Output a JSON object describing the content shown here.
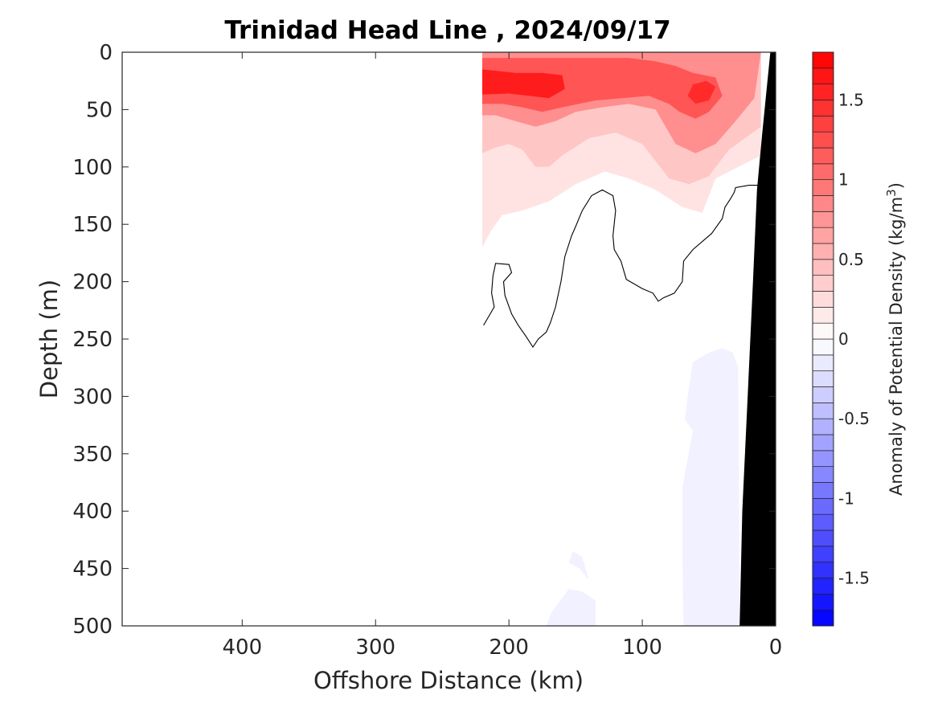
{
  "chart_data": {
    "type": "heatmap",
    "title": "Trinidad Head Line , 2024/09/17",
    "xlabel": "Offshore Distance (km)",
    "ylabel": "Depth (m)",
    "xlim": [
      490,
      0
    ],
    "ylim": [
      500,
      0
    ],
    "x_ticks": [
      400,
      300,
      200,
      100,
      0
    ],
    "y_ticks": [
      0,
      50,
      100,
      150,
      200,
      250,
      300,
      350,
      400,
      450,
      500
    ],
    "colorbar": {
      "label_prefix": "Anomaly of Potential Density (kg/m",
      "label_sup": "3",
      "label_suffix": ")",
      "range": [
        -1.8,
        1.8
      ],
      "ticks": [
        -1.5,
        -1,
        -0.5,
        0,
        0.5,
        1,
        1.5
      ],
      "tick_labels": [
        "-1.5",
        "-1",
        "-0.5",
        "0",
        "0.5",
        "1",
        "1.5"
      ]
    },
    "zero_contour": {
      "level": 0,
      "points": [
        [
          219,
          238
        ],
        [
          214,
          228
        ],
        [
          211,
          222
        ],
        [
          213,
          210
        ],
        [
          212,
          195
        ],
        [
          210,
          184
        ],
        [
          200,
          185
        ],
        [
          198,
          192
        ],
        [
          204,
          200
        ],
        [
          203,
          212
        ],
        [
          198,
          228
        ],
        [
          193,
          238
        ],
        [
          187,
          248
        ],
        [
          182,
          257
        ],
        [
          178,
          250
        ],
        [
          172,
          244
        ],
        [
          169,
          236
        ],
        [
          165,
          222
        ],
        [
          161,
          200
        ],
        [
          158,
          178
        ],
        [
          153,
          160
        ],
        [
          150,
          152
        ],
        [
          145,
          138
        ],
        [
          138,
          125
        ],
        [
          130,
          120
        ],
        [
          122,
          125
        ],
        [
          120,
          138
        ],
        [
          122,
          160
        ],
        [
          121,
          172
        ],
        [
          116,
          182
        ],
        [
          112,
          198
        ],
        [
          100,
          206
        ],
        [
          92,
          210
        ],
        [
          88,
          217
        ],
        [
          84,
          214
        ],
        [
          76,
          210
        ],
        [
          70,
          200
        ],
        [
          69,
          182
        ],
        [
          62,
          172
        ],
        [
          48,
          158
        ],
        [
          40,
          145
        ],
        [
          38,
          135
        ],
        [
          34,
          128
        ],
        [
          31,
          122
        ],
        [
          30,
          118
        ],
        [
          20,
          116
        ],
        [
          12,
          116
        ]
      ]
    },
    "field": [
      {
        "value": 0.2,
        "points": [
          [
            220,
            0
          ],
          [
            11,
            0
          ],
          [
            11,
            90
          ],
          [
            45,
            110
          ],
          [
            55,
            140
          ],
          [
            70,
            135
          ],
          [
            90,
            120
          ],
          [
            110,
            110
          ],
          [
            128,
            104
          ],
          [
            150,
            115
          ],
          [
            170,
            130
          ],
          [
            190,
            138
          ],
          [
            205,
            142
          ],
          [
            213,
            155
          ],
          [
            220,
            170
          ]
        ]
      },
      {
        "value": 0.4,
        "points": [
          [
            220,
            0
          ],
          [
            11,
            0
          ],
          [
            11,
            65
          ],
          [
            35,
            85
          ],
          [
            50,
            108
          ],
          [
            65,
            115
          ],
          [
            80,
            110
          ],
          [
            100,
            80
          ],
          [
            120,
            70
          ],
          [
            140,
            75
          ],
          [
            160,
            90
          ],
          [
            170,
            100
          ],
          [
            180,
            100
          ],
          [
            190,
            85
          ],
          [
            200,
            80
          ],
          [
            210,
            83
          ],
          [
            220,
            88
          ]
        ]
      },
      {
        "value": 0.8,
        "points": [
          [
            220,
            0
          ],
          [
            11,
            0
          ],
          [
            16,
            40
          ],
          [
            30,
            60
          ],
          [
            45,
            80
          ],
          [
            60,
            88
          ],
          [
            75,
            80
          ],
          [
            90,
            50
          ],
          [
            110,
            45
          ],
          [
            130,
            48
          ],
          [
            150,
            52
          ],
          [
            165,
            60
          ],
          [
            180,
            65
          ],
          [
            195,
            60
          ],
          [
            210,
            55
          ],
          [
            220,
            55
          ]
        ]
      },
      {
        "value": 1.2,
        "points": [
          [
            220,
            5
          ],
          [
            110,
            5
          ],
          [
            90,
            8
          ],
          [
            75,
            12
          ],
          [
            62,
            18
          ],
          [
            45,
            22
          ],
          [
            40,
            38
          ],
          [
            50,
            52
          ],
          [
            60,
            58
          ],
          [
            72,
            52
          ],
          [
            80,
            45
          ],
          [
            95,
            38
          ],
          [
            115,
            40
          ],
          [
            135,
            42
          ],
          [
            160,
            48
          ],
          [
            175,
            52
          ],
          [
            190,
            48
          ],
          [
            205,
            45
          ],
          [
            220,
            45
          ]
        ]
      },
      {
        "value": 1.6,
        "points": [
          [
            220,
            15
          ],
          [
            195,
            18
          ],
          [
            175,
            18
          ],
          [
            160,
            20
          ],
          [
            158,
            32
          ],
          [
            170,
            40
          ],
          [
            185,
            38
          ],
          [
            200,
            36
          ],
          [
            220,
            37
          ]
        ]
      },
      {
        "value": 1.5,
        "points": [
          [
            45,
            30
          ],
          [
            52,
            25
          ],
          [
            62,
            28
          ],
          [
            66,
            38
          ],
          [
            60,
            45
          ],
          [
            50,
            42
          ]
        ]
      },
      {
        "value": -0.1,
        "points": [
          [
            62,
            330
          ],
          [
            68,
            320
          ],
          [
            66,
            300
          ],
          [
            64,
            285
          ],
          [
            62,
            270
          ],
          [
            50,
            262
          ],
          [
            40,
            258
          ],
          [
            32,
            262
          ],
          [
            28,
            275
          ],
          [
            27,
            500
          ],
          [
            69,
            500
          ],
          [
            70,
            440
          ],
          [
            70,
            380
          ]
        ]
      },
      {
        "value": -0.1,
        "points": [
          [
            140,
            460
          ],
          [
            147,
            450
          ],
          [
            155,
            445
          ],
          [
            152,
            435
          ],
          [
            145,
            440
          ]
        ]
      },
      {
        "value": -0.1,
        "points": [
          [
            135,
            478
          ],
          [
            145,
            470
          ],
          [
            155,
            468
          ],
          [
            168,
            488
          ],
          [
            172,
            500
          ],
          [
            135,
            500
          ]
        ]
      }
    ],
    "land": {
      "color": "#000000",
      "points": [
        [
          0,
          0
        ],
        [
          4,
          0
        ],
        [
          10,
          70
        ],
        [
          14,
          120
        ],
        [
          17,
          200
        ],
        [
          21,
          300
        ],
        [
          25,
          400
        ],
        [
          27,
          500
        ],
        [
          0,
          500
        ]
      ]
    }
  }
}
